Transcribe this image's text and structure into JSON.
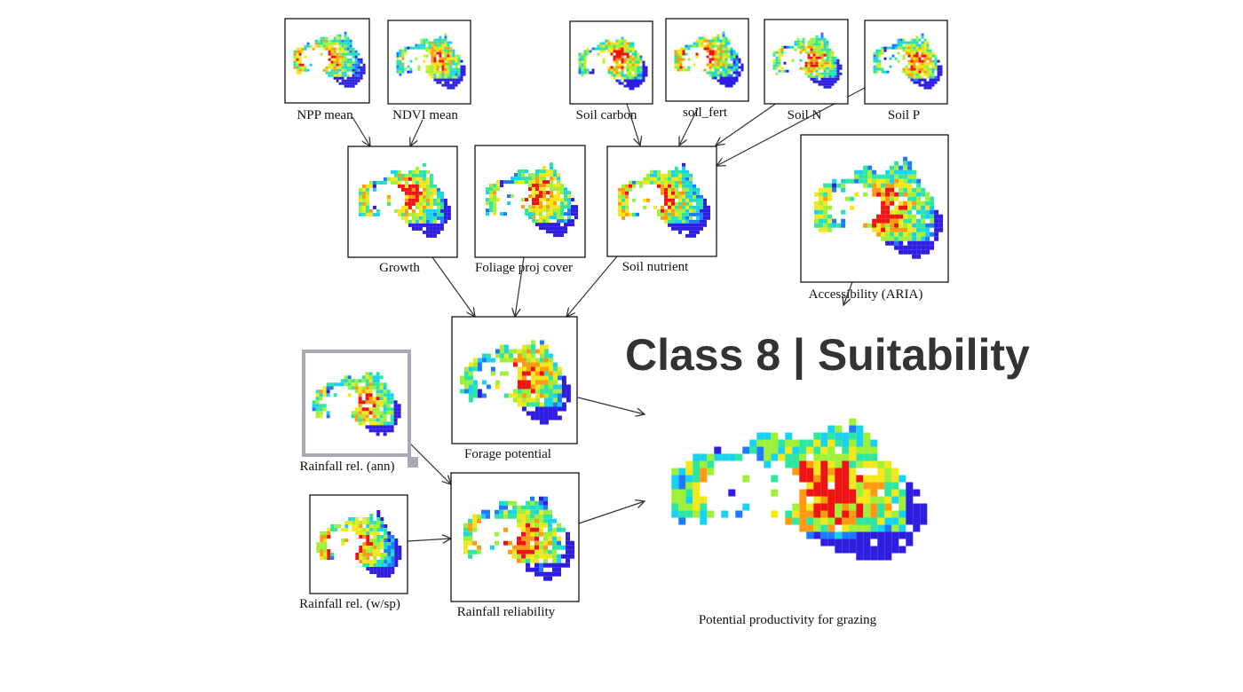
{
  "slide": {
    "heading": "Class 8 | Suitability"
  },
  "colors": {
    "heading": "#333333",
    "frame": "#000000",
    "arrow": "#333333",
    "selected_frame": "#a9a9b4",
    "map_ramp": [
      "#2f1de0",
      "#1e7bff",
      "#19d2f0",
      "#2ee6a0",
      "#9ff03a",
      "#f4e81c",
      "#ff9a12",
      "#ee1414"
    ]
  },
  "nodes": {
    "npp_mean": {
      "label": "NPP mean",
      "icon": "australia-map-raster-icon"
    },
    "ndvi_mean": {
      "label": "NDVI mean",
      "icon": "australia-map-raster-icon"
    },
    "soil_carbon": {
      "label": "Soil carbon",
      "icon": "australia-map-raster-icon"
    },
    "soil_fert": {
      "label": "soil_fert",
      "icon": "australia-map-raster-icon"
    },
    "soil_n": {
      "label": "Soil N",
      "icon": "australia-map-raster-icon"
    },
    "soil_p": {
      "label": "Soil P",
      "icon": "australia-map-raster-icon"
    },
    "growth": {
      "label": "Growth",
      "icon": "australia-map-raster-icon"
    },
    "foliage_proj_cover": {
      "label": "Foliage proj cover",
      "icon": "australia-map-raster-icon"
    },
    "soil_nutrient": {
      "label": "Soil nutrient",
      "icon": "australia-map-raster-icon"
    },
    "accessibility": {
      "label": "Accessibility (ARIA)",
      "icon": "australia-map-raster-icon"
    },
    "forage_potential": {
      "label": "Forage potential",
      "icon": "australia-map-raster-icon"
    },
    "rainfall_rel_ann": {
      "label": "Rainfall rel. (ann)",
      "icon": "australia-map-raster-icon"
    },
    "rainfall_rel_wsp": {
      "label": "Rainfall rel. (w/sp)",
      "icon": "australia-map-raster-icon"
    },
    "rainfall_reliability": {
      "label": "Rainfall  reliability",
      "icon": "australia-map-raster-icon"
    },
    "potential_productivity": {
      "label": "Potential productivity for grazing",
      "icon": "australia-map-raster-icon"
    }
  },
  "edges": [
    {
      "from": "npp_mean",
      "to": "growth"
    },
    {
      "from": "ndvi_mean",
      "to": "growth"
    },
    {
      "from": "soil_carbon",
      "to": "soil_nutrient"
    },
    {
      "from": "soil_fert",
      "to": "soil_nutrient"
    },
    {
      "from": "soil_n",
      "to": "soil_nutrient"
    },
    {
      "from": "soil_p",
      "to": "soil_nutrient"
    },
    {
      "from": "growth",
      "to": "forage_potential"
    },
    {
      "from": "foliage_proj_cover",
      "to": "forage_potential"
    },
    {
      "from": "soil_nutrient",
      "to": "forage_potential"
    },
    {
      "from": "accessibility",
      "to": "potential_productivity"
    },
    {
      "from": "forage_potential",
      "to": "potential_productivity"
    },
    {
      "from": "rainfall_rel_ann",
      "to": "rainfall_reliability"
    },
    {
      "from": "rainfall_rel_wsp",
      "to": "rainfall_reliability"
    },
    {
      "from": "rainfall_reliability",
      "to": "potential_productivity"
    }
  ]
}
